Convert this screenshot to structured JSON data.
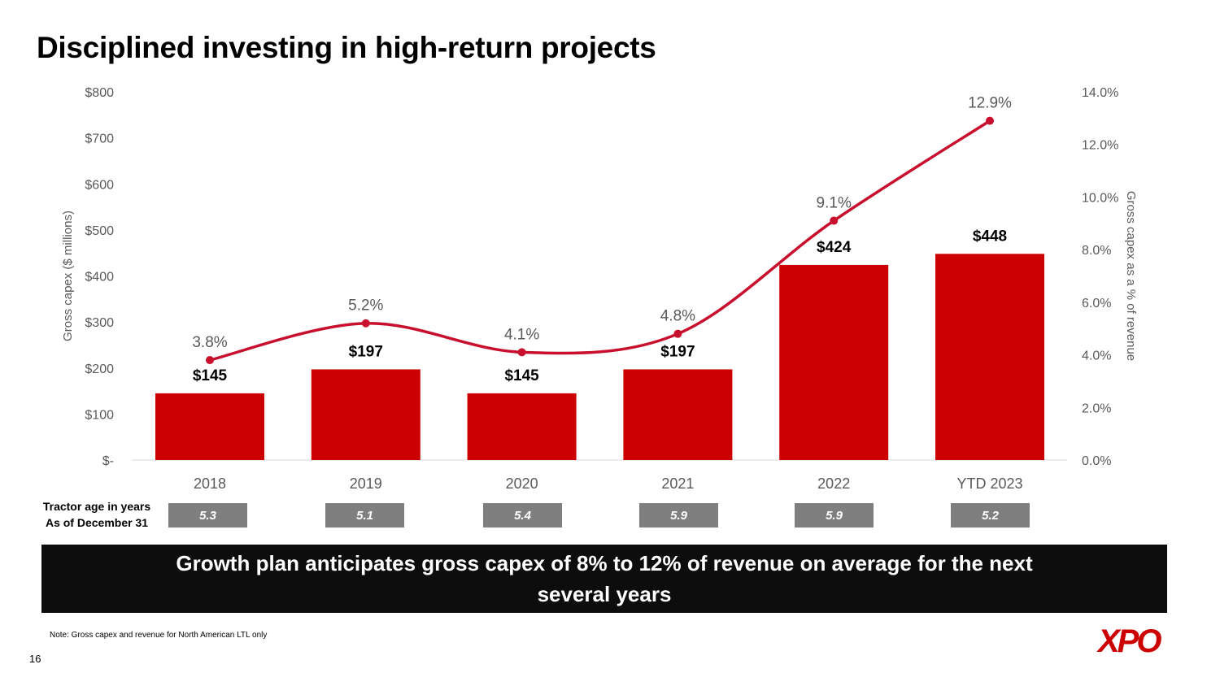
{
  "title": "Disciplined investing in high-return projects",
  "chart_data": {
    "type": "bar",
    "categories": [
      "2018",
      "2019",
      "2020",
      "2021",
      "2022",
      "YTD 2023"
    ],
    "series": [
      {
        "name": "Gross capex ($ millions)",
        "type": "bar",
        "axis": "left",
        "values": [
          145,
          197,
          145,
          197,
          424,
          448
        ],
        "labels": [
          "$145",
          "$197",
          "$145",
          "$197",
          "$424",
          "$448"
        ]
      },
      {
        "name": "Gross capex as a % of revenue",
        "type": "line",
        "axis": "right",
        "values": [
          3.8,
          5.2,
          4.1,
          4.8,
          9.1,
          12.9
        ],
        "labels": [
          "3.8%",
          "5.2%",
          "4.1%",
          "4.8%",
          "9.1%",
          "12.9%"
        ]
      }
    ],
    "ylabel": "Gross capex ($ millions)",
    "y2label": "Gross capex as a % of revenue",
    "ylim": [
      0,
      800
    ],
    "y2lim": [
      0,
      14
    ],
    "y_ticks": [
      "$-",
      "$100",
      "$200",
      "$300",
      "$400",
      "$500",
      "$600",
      "$700",
      "$800"
    ],
    "y2_ticks": [
      "0.0%",
      "2.0%",
      "4.0%",
      "6.0%",
      "8.0%",
      "10.0%",
      "12.0%",
      "14.0%"
    ],
    "grid": false,
    "legend": "none"
  },
  "tractor_age": {
    "label_line1": "Tractor age in years",
    "label_line2": "As of December 31",
    "values": [
      "5.3",
      "5.1",
      "5.4",
      "5.9",
      "5.9",
      "5.2"
    ]
  },
  "callout": "Growth plan anticipates gross capex of 8% to 12% of revenue on average for the next several years",
  "footnote": "Note: Gross capex and revenue for North American LTL only",
  "page_number": "16",
  "logo_text": "XPO",
  "colors": {
    "accent": "#cc0000",
    "line": "#c8102e",
    "tick_text": "#595959",
    "tractor_box": "#7f7f7f",
    "callout_bg": "#0d0d0d"
  }
}
